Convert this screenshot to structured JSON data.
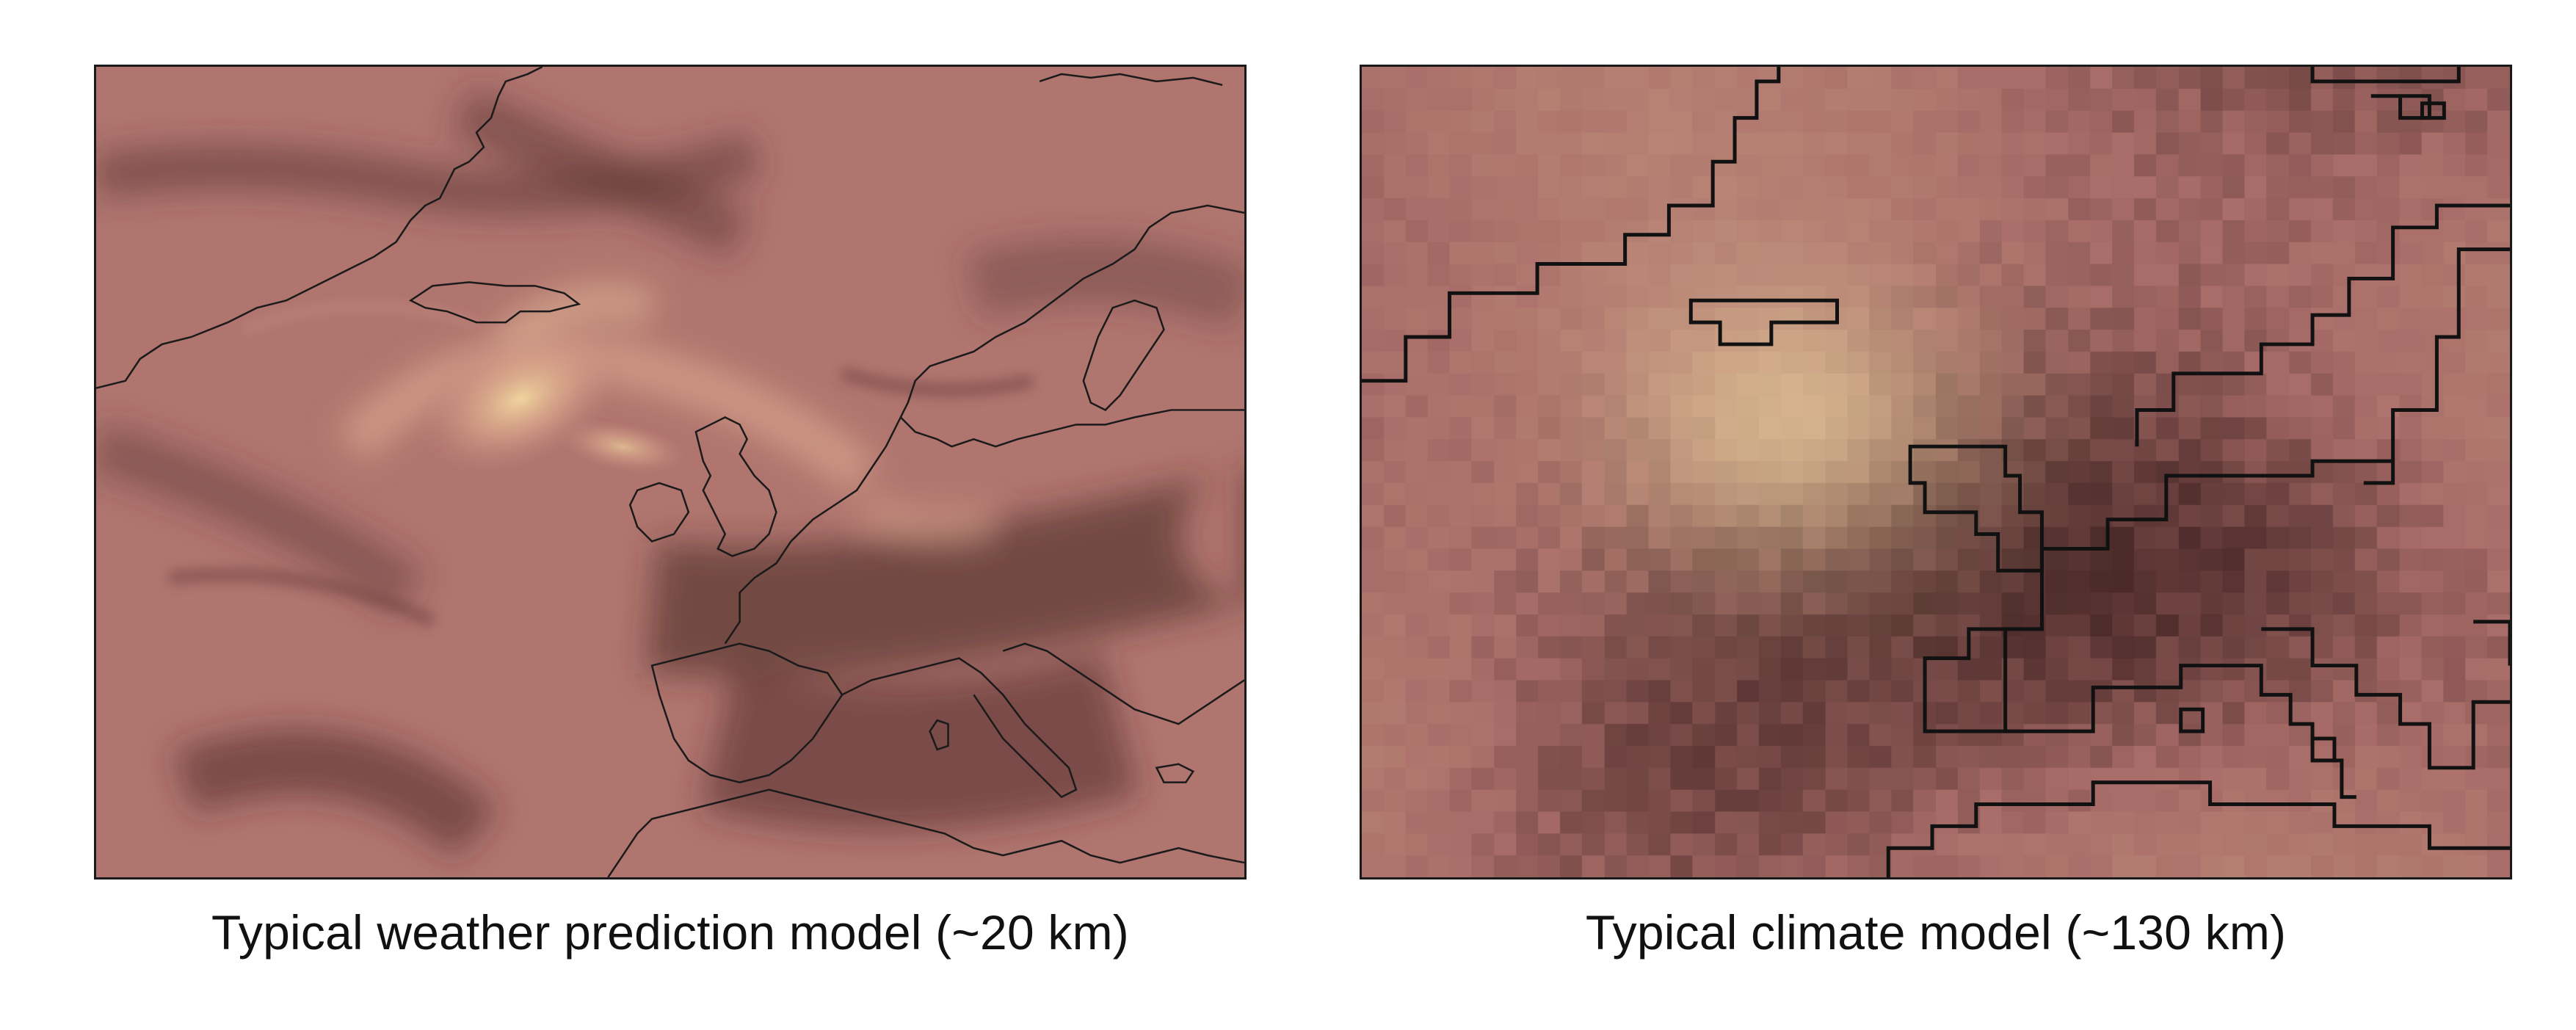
{
  "panels": [
    {
      "caption": "Typical weather prediction model (~20 km)",
      "colors": {
        "base": "#b2756f",
        "dark": "#4f2c2a",
        "light": "#e6c79a",
        "coastline": "#1a1a1a"
      }
    },
    {
      "caption": "Typical climate model (~130 km)",
      "colors": {
        "base": "#a86c68",
        "dark": "#4a2928",
        "light": "#e0c296",
        "coastline": "#111111"
      }
    }
  ]
}
